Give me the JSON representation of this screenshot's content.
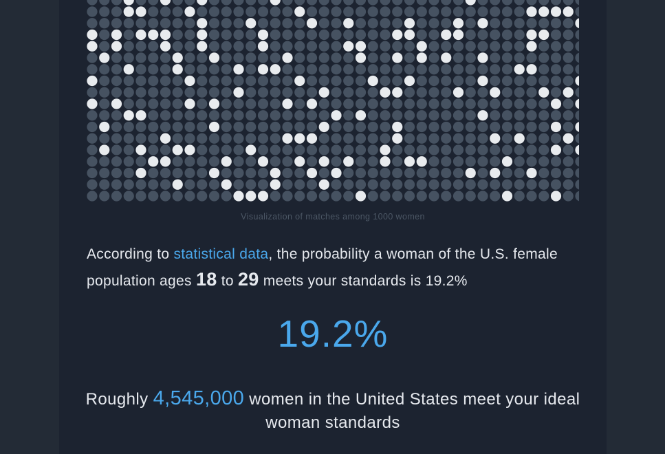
{
  "visualization": {
    "total": 1000,
    "colors": {
      "match": "#e8ebee",
      "non_match": "#465261"
    },
    "caption": "Visualization of matches among 1000 women"
  },
  "paragraph": {
    "prefix": "According to ",
    "link_label": "statistical data",
    "middle": ", the probability a woman of the U.S. female population ages ",
    "age_min": "18",
    "to_word": " to ",
    "age_max": "29",
    "suffix": " meets your standards is 19.2%"
  },
  "result": {
    "percent": "19.2%"
  },
  "summary": {
    "prefix": "Roughly ",
    "count": "4,545,000",
    "suffix": " women in the United States meet your ideal woman standards"
  }
}
